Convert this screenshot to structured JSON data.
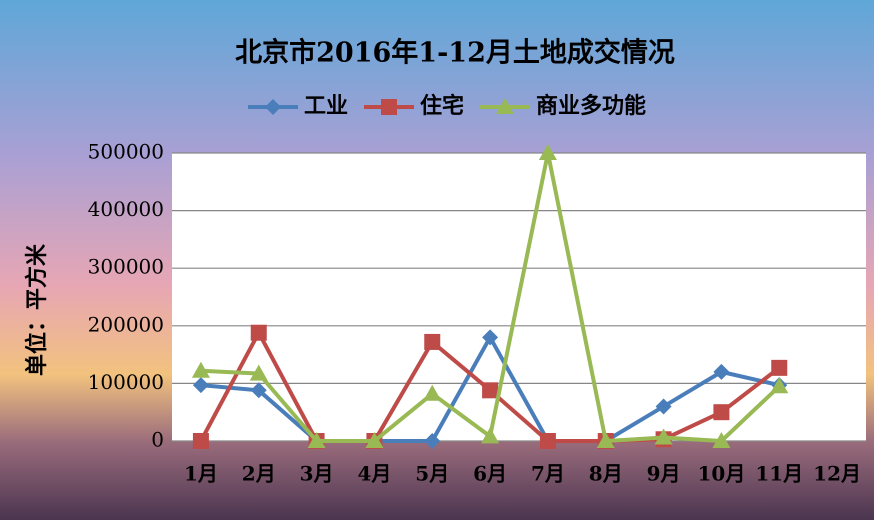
{
  "chart_data": {
    "type": "line",
    "title": "北京市2016年1-12月土地成交情况",
    "y_label": "单位：平方米",
    "categories": [
      "1月",
      "2月",
      "3月",
      "4月",
      "5月",
      "6月",
      "7月",
      "8月",
      "9月",
      "10月",
      "11月",
      "12月"
    ],
    "series": [
      {
        "name": "工业",
        "color": "#4a7ebb",
        "marker": "diamond",
        "values": [
          97000,
          88000,
          0,
          0,
          0,
          180000,
          0,
          0,
          60000,
          120000,
          97000,
          null
        ]
      },
      {
        "name": "住宅",
        "color": "#be4b48",
        "marker": "square",
        "values": [
          0,
          188000,
          0,
          0,
          172000,
          88000,
          0,
          0,
          3000,
          50000,
          127000,
          null
        ]
      },
      {
        "name": "商业多功能",
        "color": "#98b954",
        "marker": "triangle",
        "values": [
          122000,
          117000,
          0,
          0,
          82000,
          8000,
          500000,
          0,
          6000,
          0,
          95000,
          null
        ]
      }
    ],
    "ylim": [
      0,
      500000
    ],
    "yticks": [
      0,
      100000,
      200000,
      300000,
      400000,
      500000
    ],
    "grid": true
  }
}
